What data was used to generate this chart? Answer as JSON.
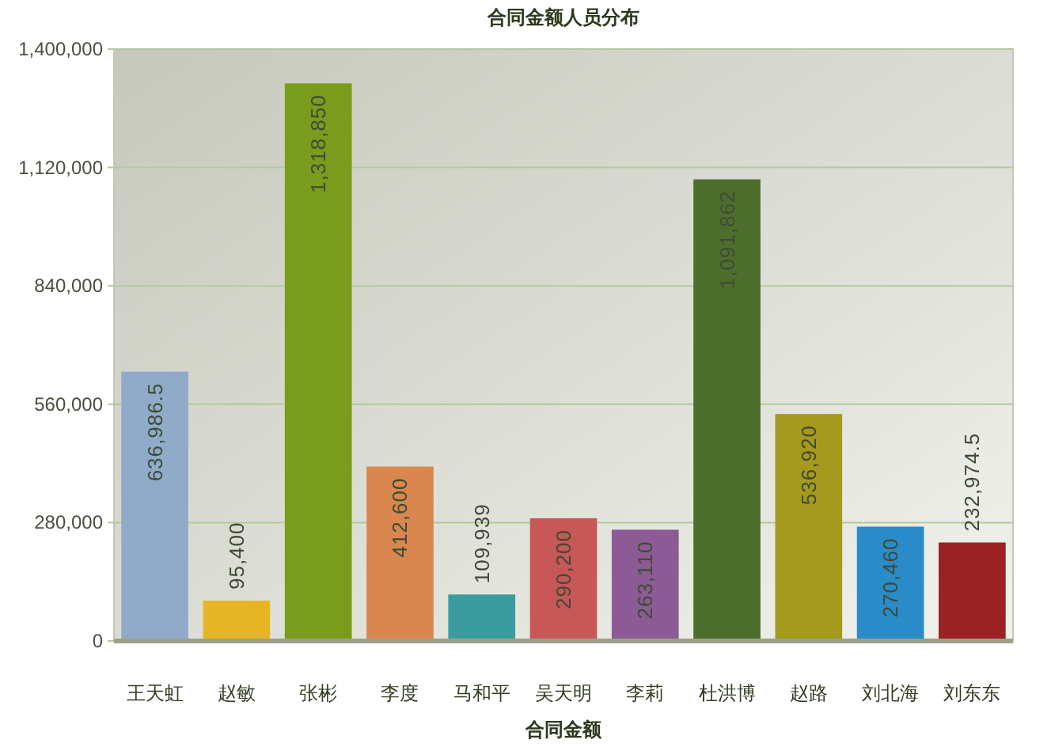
{
  "chart_data": {
    "type": "bar",
    "title": "合同金额人员分布",
    "xlabel": "合同金额",
    "categories": [
      "王天虹",
      "赵敏",
      "张彬",
      "李度",
      "马和平",
      "吴天明",
      "李莉",
      "杜洪博",
      "赵路",
      "刘北海",
      "刘东东"
    ],
    "values": [
      636986.5,
      95400,
      1318850,
      412600,
      109939,
      290200,
      263110,
      1091862,
      536920,
      270460,
      232974.5
    ],
    "value_labels": [
      "636,986.5",
      "95,400",
      "1,318,850",
      "412,600",
      "109,939",
      "290,200",
      "263,110",
      "1,091,862",
      "536,920",
      "270,460",
      "232,974.5"
    ],
    "colors": [
      "#8fabc8",
      "#e6b526",
      "#7a9c1c",
      "#d9874e",
      "#3a9c9e",
      "#c85858",
      "#8c5a94",
      "#4e6e2e",
      "#a69a1e",
      "#2a8bc9",
      "#9a2222"
    ],
    "ylim": [
      0,
      1400000
    ],
    "yticks": [
      {
        "value": 0,
        "label": "0"
      },
      {
        "value": 280000,
        "label": "280,000"
      },
      {
        "value": 560000,
        "label": "560,000"
      },
      {
        "value": 840000,
        "label": "840,000"
      },
      {
        "value": 1120000,
        "label": "1,120,000"
      },
      {
        "value": 1400000,
        "label": "1,400,000"
      }
    ],
    "grid": "y"
  }
}
